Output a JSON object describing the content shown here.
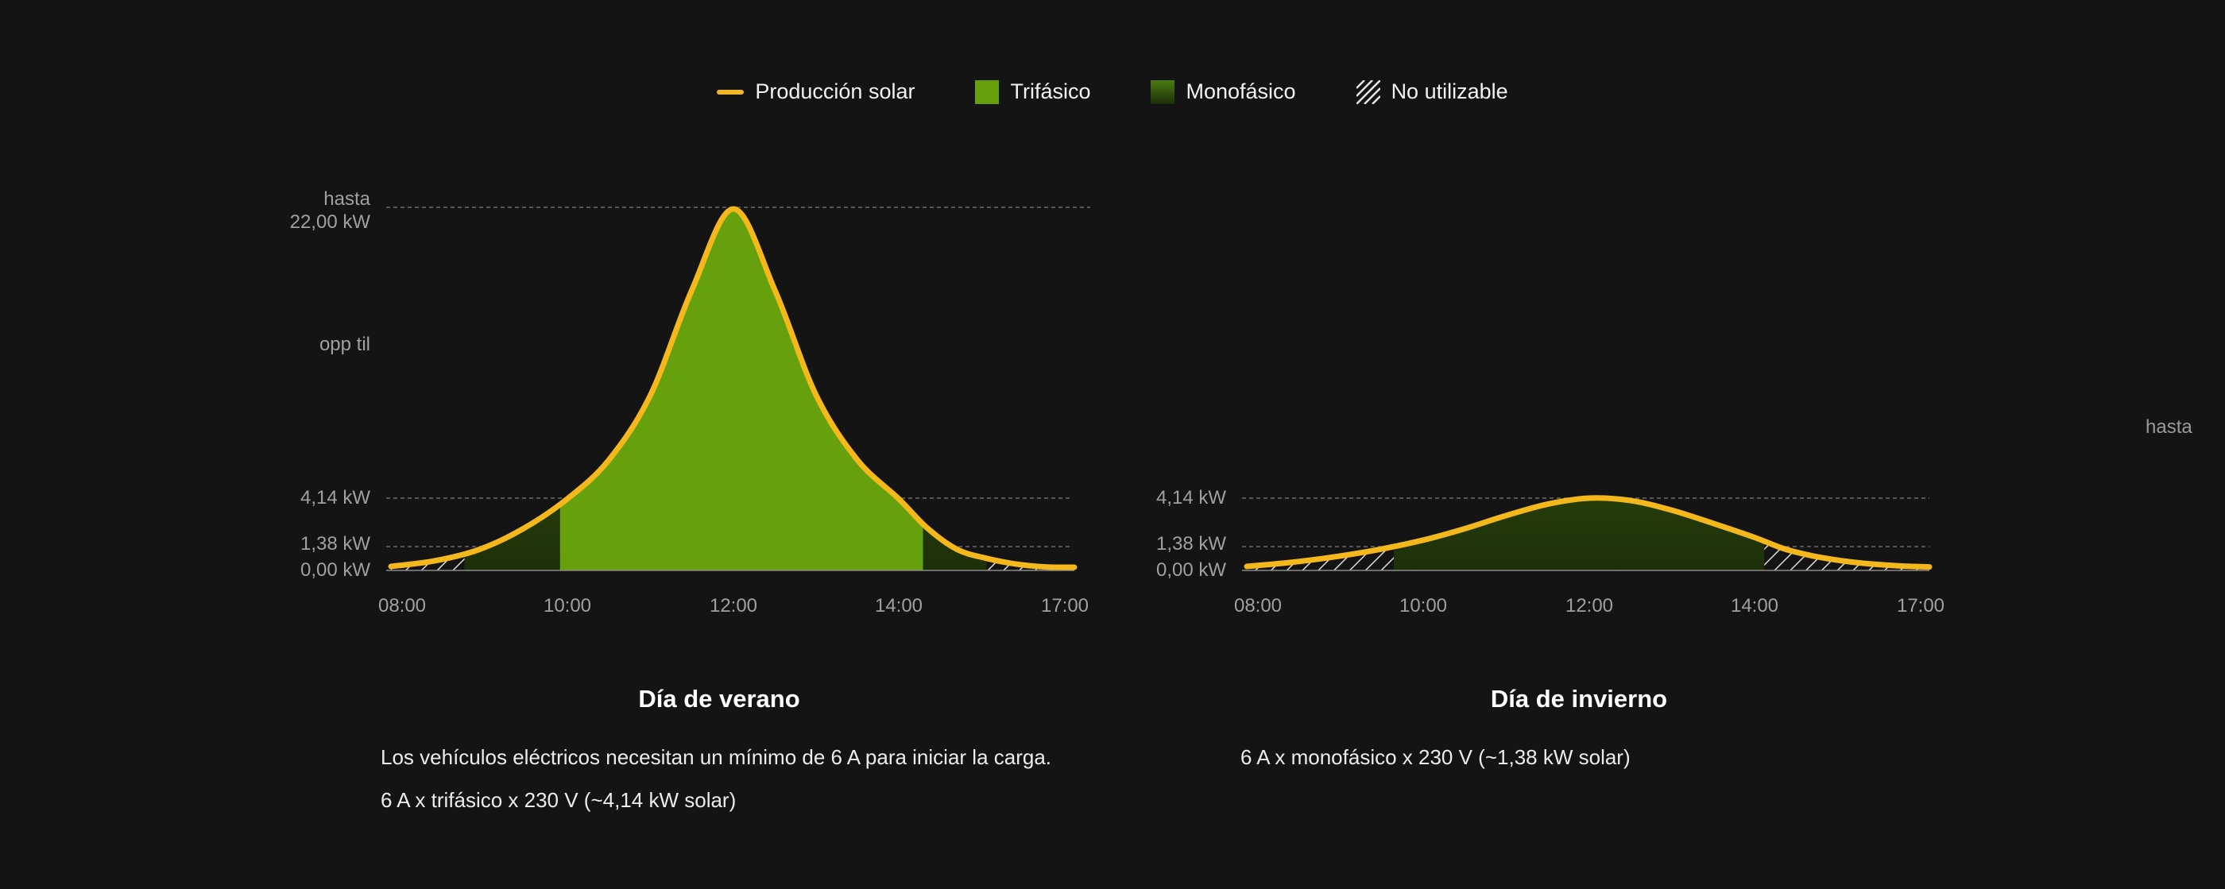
{
  "legend": {
    "items": [
      {
        "key": "solar",
        "label": "Producción solar",
        "color": "#f4b81c",
        "swatch": "line"
      },
      {
        "key": "three_phase",
        "label": "Trifásico",
        "color": "#66a00c",
        "swatch": "box"
      },
      {
        "key": "single_phase",
        "label": "Monofásico",
        "color": "#3f6a10",
        "swatch": "gradient"
      },
      {
        "key": "unusable",
        "label": "No utilizable",
        "color": "#e6e6e6",
        "swatch": "hatch"
      }
    ]
  },
  "colors": {
    "background": "#141414",
    "solar_line": "#f4b81c",
    "three_phase": "#66a00c",
    "single_phase_top": "#4a7c12",
    "single_phase_bottom": "#1d2f08",
    "gridline": "#6a6a6a",
    "axis_text": "#a0a0a0"
  },
  "side_label": "hasta",
  "chart_data": [
    {
      "type": "area",
      "title": "Día de verano",
      "x_ticks": [
        "08:00",
        "10:00",
        "12:00",
        "14:00",
        "17:00"
      ],
      "y_tick_labels": {
        "top_line1": "hasta",
        "top_line2": "22,00 kW",
        "mid": "opp til",
        "t3": "4,14 kW",
        "t1": "1,38 kW",
        "zero": "0,00 kW"
      },
      "y_levels_kw": {
        "max": 22.0,
        "three_phase_threshold": 4.14,
        "single_phase_threshold": 1.38,
        "zero": 0.0
      },
      "series": [
        {
          "name": "Producción solar",
          "x_hours": [
            8.0,
            8.5,
            9.0,
            9.5,
            10.0,
            10.5,
            11.0,
            11.5,
            12.0,
            12.5,
            13.0,
            13.5,
            14.0,
            14.5,
            15.0,
            15.5,
            16.0,
            16.5,
            17.0
          ],
          "y_kw": [
            0.15,
            0.5,
            1.2,
            2.4,
            4.1,
            6.5,
            10.5,
            17.0,
            22.0,
            17.0,
            10.5,
            6.5,
            4.1,
            2.4,
            1.2,
            0.65,
            0.3,
            0.12,
            0.1
          ]
        }
      ],
      "regions": [
        {
          "label": "No utilizable",
          "from": "08:00",
          "to": "08:50"
        },
        {
          "label": "Monofásico",
          "from": "08:50",
          "to": "09:55"
        },
        {
          "label": "Trifásico",
          "from": "09:55",
          "to": "14:25"
        },
        {
          "label": "Monofásico",
          "from": "14:25",
          "to": "15:30"
        },
        {
          "label": "No utilizable",
          "from": "15:30",
          "to": "17:00"
        }
      ]
    },
    {
      "type": "area",
      "title": "Día de invierno",
      "x_ticks": [
        "08:00",
        "10:00",
        "12:00",
        "14:00",
        "17:00"
      ],
      "y_tick_labels": {
        "t3": "4,14 kW",
        "t1": "1,38 kW",
        "zero": "0,00 kW"
      },
      "y_levels_kw": {
        "three_phase_threshold": 4.14,
        "single_phase_threshold": 1.38,
        "zero": 0.0
      },
      "series": [
        {
          "name": "Producción solar",
          "x_hours": [
            8.0,
            8.5,
            9.0,
            9.5,
            10.0,
            10.5,
            11.0,
            11.5,
            12.0,
            12.5,
            13.0,
            13.5,
            14.0,
            14.5,
            15.0,
            15.5,
            16.0,
            16.5,
            17.0
          ],
          "y_kw": [
            0.15,
            0.4,
            0.75,
            1.2,
            1.75,
            2.4,
            3.15,
            3.8,
            4.14,
            4.0,
            3.45,
            2.7,
            1.9,
            1.25,
            0.8,
            0.5,
            0.3,
            0.18,
            0.12
          ]
        }
      ],
      "regions": [
        {
          "label": "No utilizable",
          "from": "08:00",
          "to": "09:40"
        },
        {
          "label": "Monofásico",
          "from": "09:40",
          "to": "14:10"
        },
        {
          "label": "No utilizable",
          "from": "14:10",
          "to": "17:00"
        }
      ]
    }
  ],
  "notes": {
    "summer_line1": "Los vehículos eléctricos necesitan un mínimo de 6 A para iniciar la carga.",
    "summer_line2": "6 A x trifásico x 230 V (~4,14 kW solar)",
    "winter_line1": "6 A x monofásico x 230 V (~1,38 kW solar)"
  }
}
